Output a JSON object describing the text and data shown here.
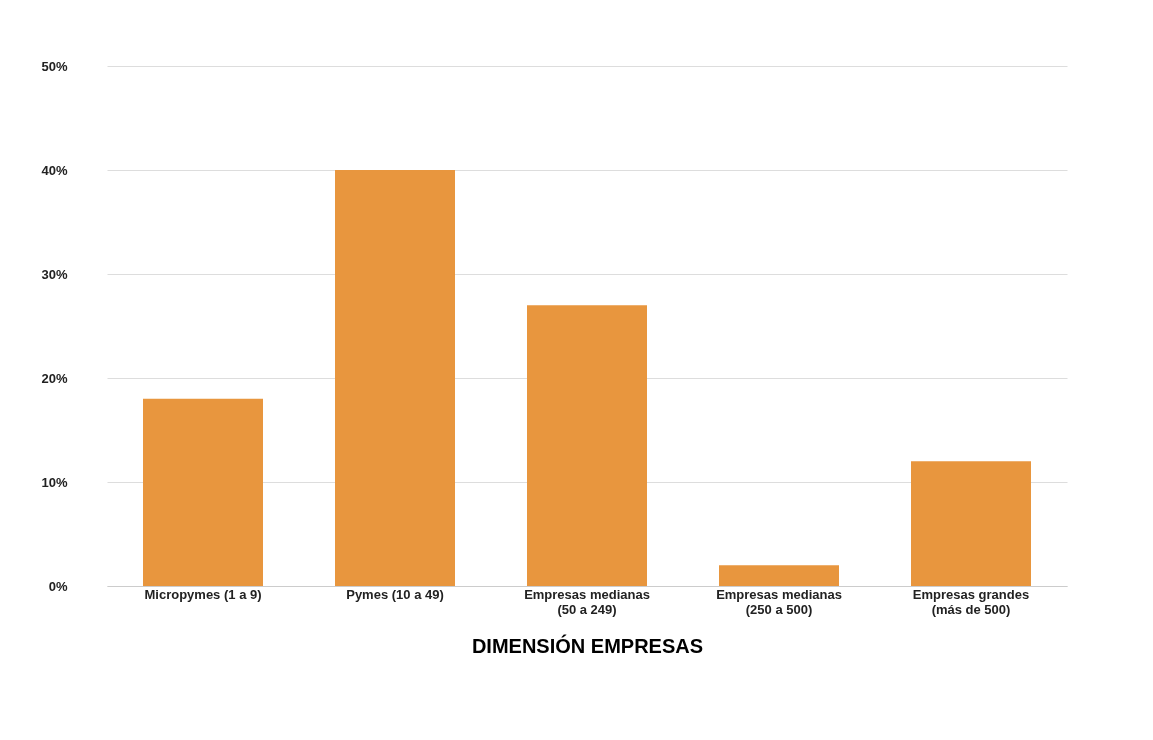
{
  "chart_data": {
    "type": "bar",
    "xlabel": "DIMENSIÓN EMPRESAS",
    "categories": [
      "Micropymes (1 a 9)",
      "Pymes (10 a 49)",
      "Empresas medianas (50 a 249)",
      "Empresas medianas (250 a 500)",
      "Empresas grandes (más de 500)"
    ],
    "values": [
      18,
      40,
      27,
      2,
      12
    ],
    "color": "#e8963e",
    "ylim": [
      0,
      50
    ],
    "yticks": [
      {
        "value": 0,
        "label": "0%"
      },
      {
        "value": 10,
        "label": "10%"
      },
      {
        "value": 20,
        "label": "20%"
      },
      {
        "value": 30,
        "label": "30%"
      },
      {
        "value": 40,
        "label": "40%"
      },
      {
        "value": 50,
        "label": "50%"
      }
    ],
    "grid": "y"
  }
}
